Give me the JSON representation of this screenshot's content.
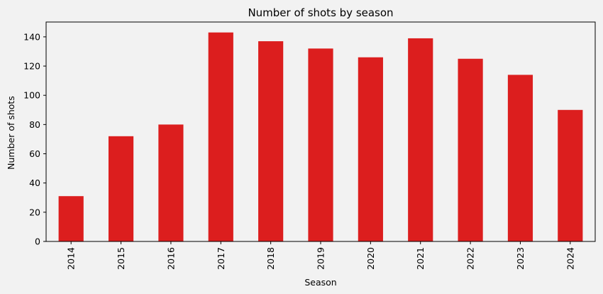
{
  "chart_data": {
    "type": "bar",
    "title": "Number of shots by season",
    "xlabel": "Season",
    "ylabel": "Number of shots",
    "categories": [
      "2014",
      "2015",
      "2016",
      "2017",
      "2018",
      "2019",
      "2020",
      "2021",
      "2022",
      "2023",
      "2024"
    ],
    "values": [
      31,
      72,
      80,
      143,
      137,
      132,
      126,
      139,
      125,
      114,
      90
    ],
    "ylim": [
      0,
      150.15
    ],
    "yticks": [
      0,
      20,
      40,
      60,
      80,
      100,
      120,
      140
    ],
    "grid": false,
    "legend": "none",
    "bar_color": "#dc1e1e",
    "background_color": "#f2f2f2"
  }
}
